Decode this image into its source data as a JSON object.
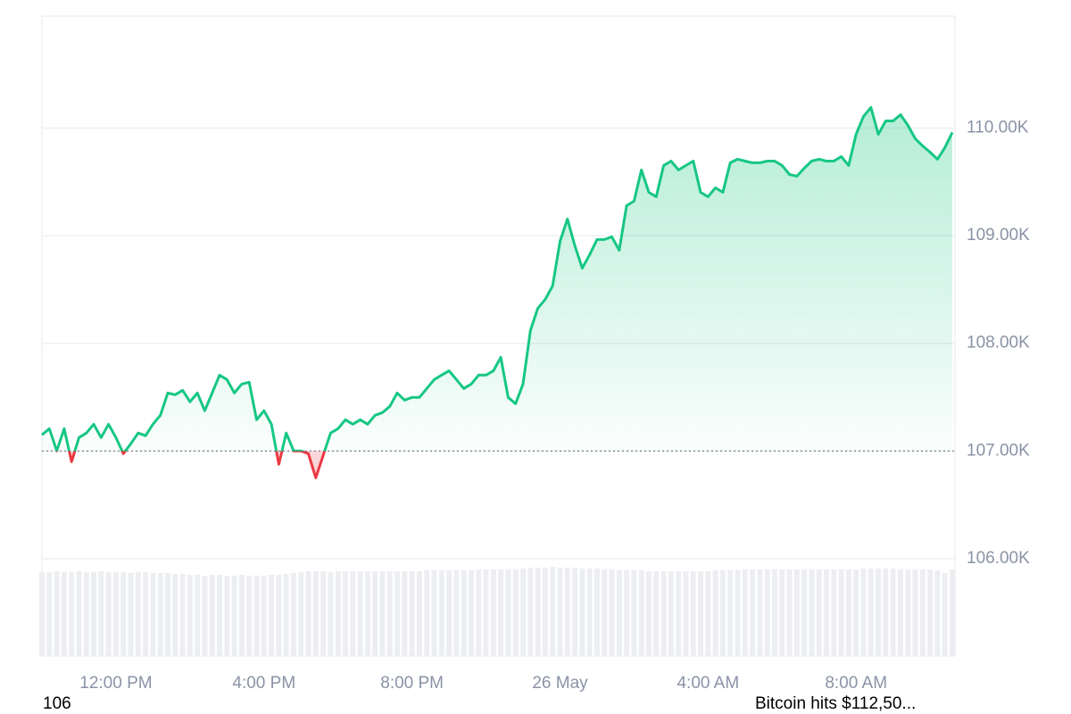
{
  "chart_data": {
    "type": "line",
    "categories": [
      null,
      null,
      null,
      null,
      null,
      null,
      null,
      null,
      null,
      null,
      "12:00 PM",
      null,
      null,
      null,
      null,
      null,
      null,
      null,
      null,
      null,
      null,
      null,
      null,
      null,
      null,
      null,
      null,
      null,
      null,
      null,
      "4:00 PM",
      null,
      null,
      null,
      null,
      null,
      null,
      null,
      null,
      null,
      null,
      null,
      null,
      null,
      null,
      null,
      null,
      null,
      null,
      null,
      "8:00 PM",
      null,
      null,
      null,
      null,
      null,
      null,
      null,
      null,
      null,
      null,
      null,
      null,
      null,
      null,
      null,
      null,
      null,
      null,
      null,
      "26 May",
      null,
      null,
      null,
      null,
      null,
      null,
      null,
      null,
      null,
      null,
      null,
      null,
      null,
      null,
      null,
      null,
      null,
      null,
      null,
      "4:00 AM",
      null,
      null,
      null,
      null,
      null,
      null,
      null,
      null,
      null,
      null,
      null,
      null,
      null,
      null,
      null,
      null,
      null,
      null,
      null,
      "8:00 AM",
      null,
      null,
      null,
      null,
      null,
      null,
      null,
      null,
      null,
      null,
      null,
      null,
      null
    ],
    "series": [
      {
        "values": [
          107150,
          107208,
          107001,
          107208,
          106901,
          107125,
          107167,
          107249,
          107125,
          107249,
          107125,
          106976,
          107067,
          107167,
          107142,
          107249,
          107332,
          107539,
          107523,
          107564,
          107457,
          107539,
          107374,
          107539,
          107705,
          107664,
          107539,
          107622,
          107639,
          107291,
          107374,
          107249,
          106877,
          107167,
          107001,
          107001,
          106976,
          106752,
          106959,
          107167,
          107208,
          107291,
          107249,
          107291,
          107249,
          107332,
          107357,
          107415,
          107539,
          107473,
          107498,
          107498,
          107581,
          107664,
          107705,
          107746,
          107664,
          107581,
          107622,
          107705,
          107705,
          107746,
          107871,
          107498,
          107440,
          107622,
          108119,
          108326,
          108409,
          108534,
          108948,
          109155,
          108906,
          108699,
          108824,
          108964,
          108964,
          108989,
          108865,
          109279,
          109321,
          109611,
          109403,
          109362,
          109652,
          109693,
          109611,
          109652,
          109693,
          109403,
          109362,
          109445,
          109403,
          109677,
          109710,
          109693,
          109677,
          109677,
          109693,
          109693,
          109652,
          109569,
          109553,
          109627,
          109693,
          109710,
          109693,
          109693,
          109735,
          109652,
          109942,
          110108,
          110191,
          109942,
          110066,
          110066,
          110124,
          110025,
          109901,
          109834,
          109776,
          109710,
          109818,
          109959
        ]
      }
    ],
    "volume": {
      "color": "#eceef2",
      "values": [
        94,
        94,
        95,
        94,
        94,
        95,
        94,
        94,
        95,
        94,
        94,
        94,
        93,
        94,
        94,
        93,
        93,
        93,
        92,
        92,
        91,
        91,
        90,
        91,
        91,
        90,
        90,
        91,
        90,
        90,
        90,
        91,
        91,
        92,
        93,
        94,
        95,
        95,
        95,
        94,
        95,
        95,
        95,
        95,
        95,
        95,
        95,
        95,
        95,
        95,
        95,
        95,
        96,
        96,
        96,
        96,
        96,
        96,
        96,
        97,
        97,
        97,
        97,
        97,
        97,
        98,
        99,
        99,
        99,
        100,
        99,
        99,
        99,
        98,
        98,
        98,
        97,
        97,
        96,
        96,
        96,
        96,
        95,
        95,
        95,
        95,
        95,
        95,
        95,
        95,
        95,
        96,
        96,
        96,
        96,
        97,
        97,
        97,
        97,
        97,
        97,
        97,
        97,
        97,
        97,
        97,
        97,
        97,
        97,
        97,
        97,
        98,
        98,
        98,
        98,
        98,
        97,
        97,
        97,
        97,
        97,
        96,
        93,
        97
      ]
    },
    "up_color": "#16c784",
    "down_color": "#ea3943",
    "baseline": 107000,
    "ylim": [
      106000,
      111040
    ],
    "yticks": [
      {
        "value": 106000,
        "label": "106.00K"
      },
      {
        "value": 107000,
        "label": "107.00K"
      },
      {
        "value": 108000,
        "label": "108.00K"
      },
      {
        "value": 109000,
        "label": "109.00K"
      },
      {
        "value": 110000,
        "label": "110.00K"
      }
    ],
    "grid": true
  },
  "footer": {
    "left": "106",
    "right": "Bitcoin hits $112,50..."
  }
}
